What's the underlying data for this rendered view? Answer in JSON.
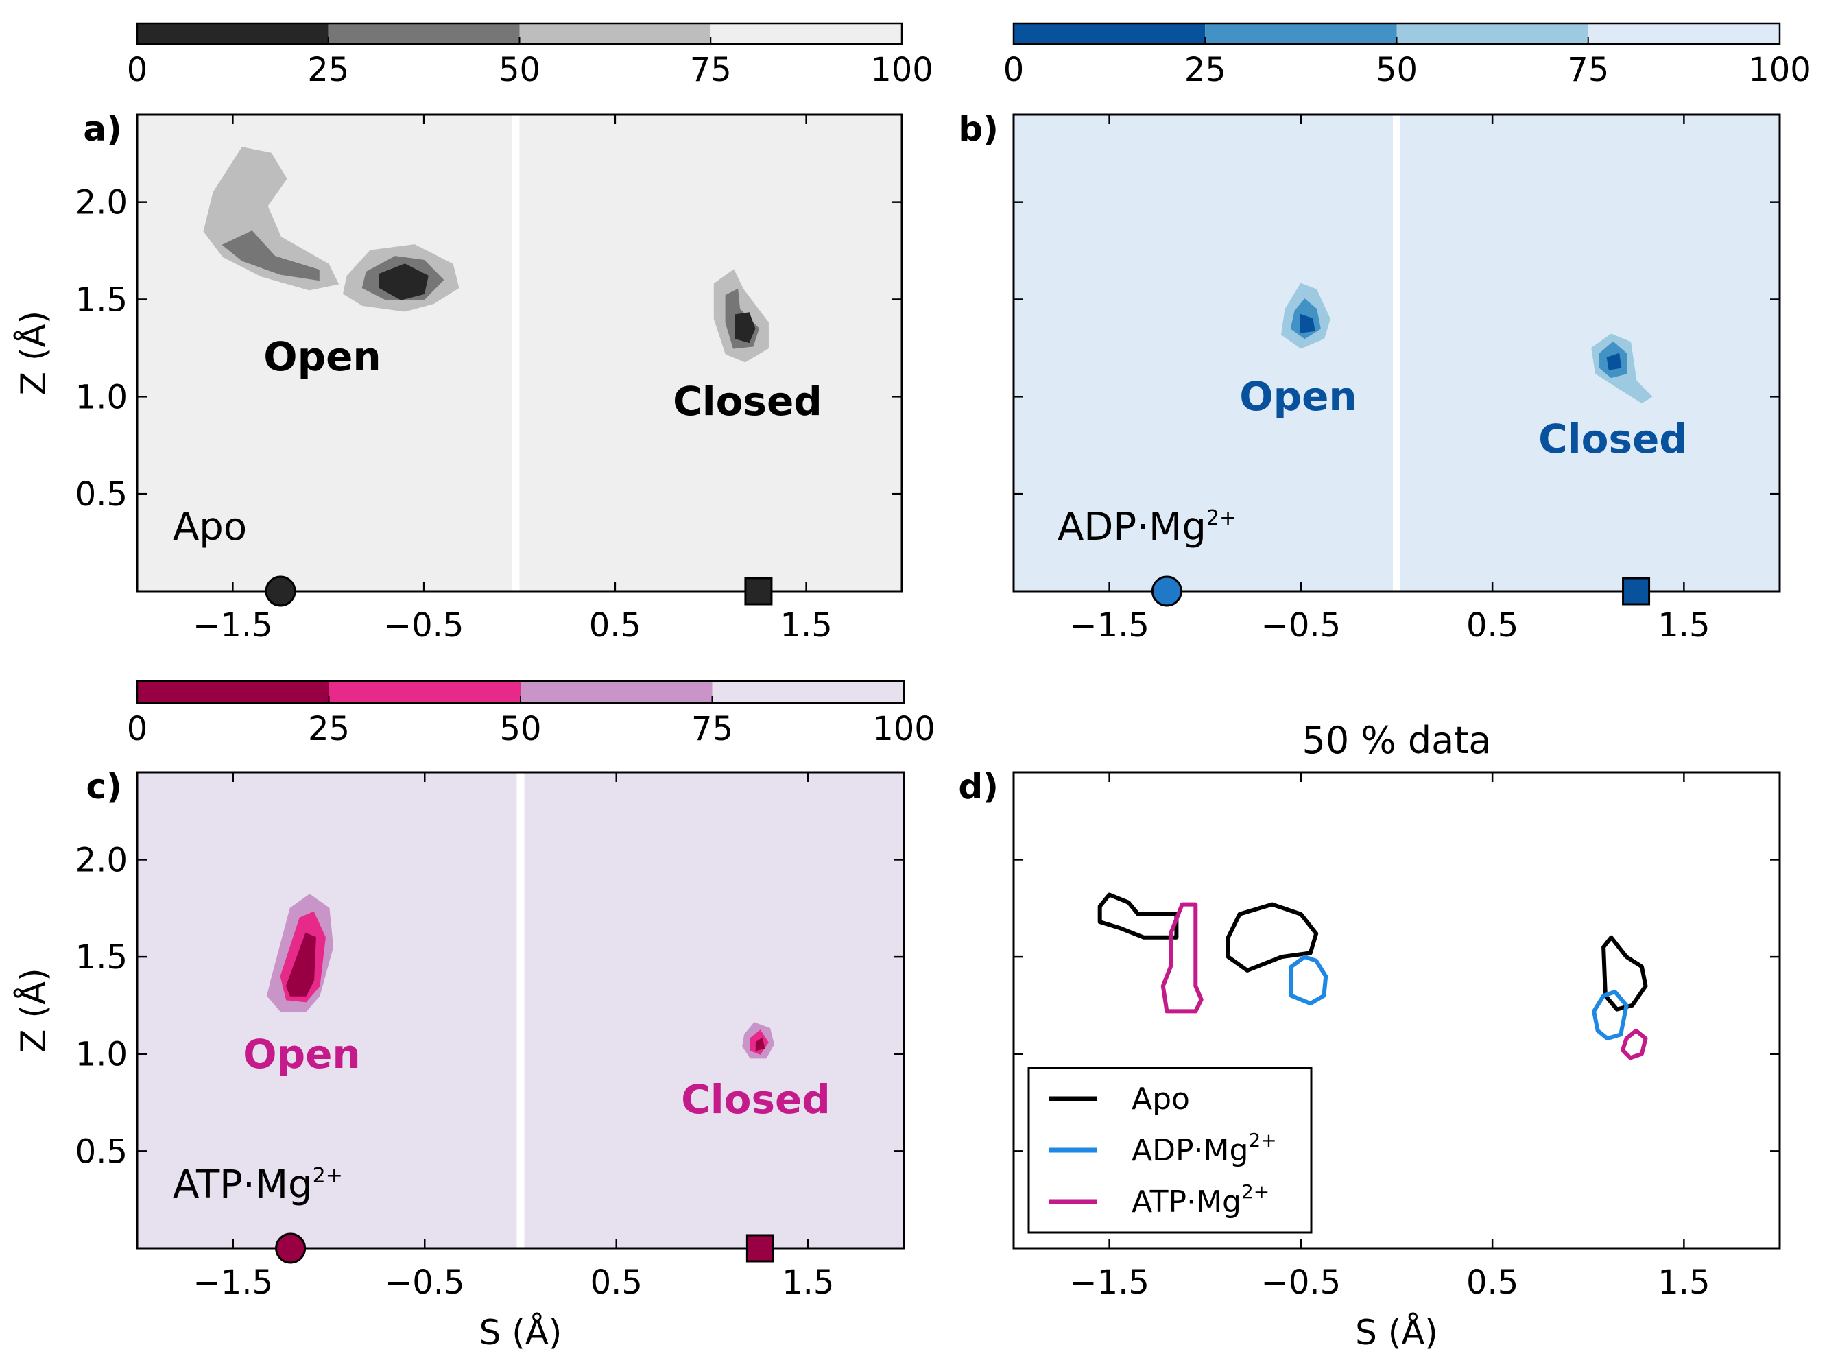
{
  "chart_data": [
    {
      "panel": "a)",
      "type": "contour",
      "condition": {
        "base": "Apo",
        "sup": ""
      },
      "background_color": "#efefef",
      "colorbar": {
        "ticks": [
          "0",
          "25",
          "50",
          "75",
          "100"
        ],
        "colors": [
          "#262626",
          "#767676",
          "#bdbdbd",
          "#efefef"
        ]
      },
      "xticks": [
        "−1.5",
        "−0.5",
        "0.5",
        "1.5"
      ],
      "yticks": [
        "0.5",
        "1.0",
        "1.5",
        "2.0"
      ],
      "xlim": [
        -2.0,
        2.0
      ],
      "ylim": [
        0.0,
        2.45
      ],
      "ylabel": "Z (Å)",
      "xlabel": "",
      "divider_x": -0.02,
      "labels": {
        "open": "Open",
        "closed": "Closed"
      },
      "label_color": "#000000",
      "marker_color": "#262626",
      "open_marker": [
        -1.25,
        0.0
      ],
      "closed_marker": [
        1.25,
        0.0
      ],
      "clusters": [
        {
          "levels": [
            [
              [
                -1.6,
                2.05
              ],
              [
                -1.45,
                2.28
              ],
              [
                -1.3,
                2.25
              ],
              [
                -1.22,
                2.12
              ],
              [
                -1.32,
                1.98
              ],
              [
                -1.25,
                1.82
              ],
              [
                -1.0,
                1.68
              ],
              [
                -0.95,
                1.58
              ],
              [
                -1.1,
                1.55
              ],
              [
                -1.35,
                1.62
              ],
              [
                -1.55,
                1.72
              ],
              [
                -1.65,
                1.85
              ]
            ],
            [
              [
                -1.55,
                1.78
              ],
              [
                -1.4,
                1.85
              ],
              [
                -1.28,
                1.72
              ],
              [
                -1.05,
                1.65
              ],
              [
                -1.05,
                1.6
              ],
              [
                -1.25,
                1.63
              ],
              [
                -1.45,
                1.7
              ]
            ]
          ]
        },
        {
          "levels": [
            [
              [
                -0.9,
                1.62
              ],
              [
                -0.78,
                1.75
              ],
              [
                -0.55,
                1.78
              ],
              [
                -0.35,
                1.68
              ],
              [
                -0.32,
                1.56
              ],
              [
                -0.45,
                1.48
              ],
              [
                -0.6,
                1.44
              ],
              [
                -0.82,
                1.47
              ],
              [
                -0.92,
                1.53
              ]
            ],
            [
              [
                -0.8,
                1.64
              ],
              [
                -0.65,
                1.72
              ],
              [
                -0.5,
                1.7
              ],
              [
                -0.4,
                1.6
              ],
              [
                -0.5,
                1.5
              ],
              [
                -0.7,
                1.5
              ],
              [
                -0.82,
                1.56
              ]
            ],
            [
              [
                -0.73,
                1.63
              ],
              [
                -0.6,
                1.68
              ],
              [
                -0.48,
                1.62
              ],
              [
                -0.5,
                1.53
              ],
              [
                -0.62,
                1.5
              ],
              [
                -0.73,
                1.56
              ]
            ]
          ]
        },
        {
          "levels": [
            [
              [
                1.02,
                1.58
              ],
              [
                1.12,
                1.65
              ],
              [
                1.17,
                1.55
              ],
              [
                1.3,
                1.38
              ],
              [
                1.3,
                1.25
              ],
              [
                1.18,
                1.18
              ],
              [
                1.08,
                1.22
              ],
              [
                1.02,
                1.4
              ]
            ],
            [
              [
                1.08,
                1.52
              ],
              [
                1.14,
                1.55
              ],
              [
                1.15,
                1.45
              ],
              [
                1.25,
                1.35
              ],
              [
                1.22,
                1.26
              ],
              [
                1.12,
                1.25
              ],
              [
                1.08,
                1.38
              ]
            ],
            [
              [
                1.13,
                1.42
              ],
              [
                1.2,
                1.43
              ],
              [
                1.23,
                1.35
              ],
              [
                1.2,
                1.28
              ],
              [
                1.13,
                1.3
              ]
            ]
          ]
        }
      ]
    },
    {
      "panel": "b)",
      "type": "contour",
      "condition": {
        "base": "ADP·Mg",
        "sup": "2+"
      },
      "background_color": "#deebf7",
      "colorbar": {
        "ticks": [
          "0",
          "25",
          "50",
          "75",
          "100"
        ],
        "colors": [
          "#08519c",
          "#4292c6",
          "#9ecae1",
          "#deebf7"
        ]
      },
      "xticks": [
        "−1.5",
        "−0.5",
        "0.5",
        "1.5"
      ],
      "yticks": [],
      "xlim": [
        -2.0,
        2.0
      ],
      "ylim": [
        0.0,
        2.45
      ],
      "ylabel": "",
      "xlabel": "",
      "divider_x": 0.0,
      "labels": {
        "open": "Open",
        "closed": "Closed"
      },
      "label_color": "#08519c",
      "marker_color": "#1f78c8",
      "closed_marker_color": "#08519c",
      "open_marker": [
        -1.2,
        0.0
      ],
      "closed_marker": [
        1.25,
        0.0
      ],
      "clusters": [
        {
          "levels": [
            [
              [
                -0.58,
                1.45
              ],
              [
                -0.5,
                1.58
              ],
              [
                -0.42,
                1.55
              ],
              [
                -0.35,
                1.4
              ],
              [
                -0.38,
                1.3
              ],
              [
                -0.5,
                1.25
              ],
              [
                -0.6,
                1.32
              ]
            ],
            [
              [
                -0.53,
                1.44
              ],
              [
                -0.48,
                1.5
              ],
              [
                -0.42,
                1.45
              ],
              [
                -0.4,
                1.35
              ],
              [
                -0.48,
                1.3
              ],
              [
                -0.55,
                1.35
              ]
            ],
            [
              [
                -0.5,
                1.42
              ],
              [
                -0.44,
                1.4
              ],
              [
                -0.43,
                1.34
              ],
              [
                -0.5,
                1.33
              ]
            ]
          ]
        },
        {
          "levels": [
            [
              [
                1.02,
                1.25
              ],
              [
                1.12,
                1.32
              ],
              [
                1.22,
                1.28
              ],
              [
                1.25,
                1.08
              ],
              [
                1.33,
                1.0
              ],
              [
                1.28,
                0.97
              ],
              [
                1.15,
                1.05
              ],
              [
                1.04,
                1.12
              ]
            ],
            [
              [
                1.06,
                1.22
              ],
              [
                1.13,
                1.28
              ],
              [
                1.2,
                1.22
              ],
              [
                1.2,
                1.12
              ],
              [
                1.12,
                1.1
              ],
              [
                1.06,
                1.15
              ]
            ],
            [
              [
                1.1,
                1.2
              ],
              [
                1.16,
                1.22
              ],
              [
                1.17,
                1.15
              ],
              [
                1.11,
                1.14
              ]
            ]
          ]
        }
      ]
    },
    {
      "panel": "c)",
      "type": "contour",
      "condition": {
        "base": "ATP·Mg",
        "sup": "2+"
      },
      "background_color": "#e7e1ef",
      "colorbar": {
        "ticks": [
          "0",
          "25",
          "50",
          "75",
          "100"
        ],
        "colors": [
          "#980043",
          "#e7298a",
          "#c994c7",
          "#e7e1ef"
        ]
      },
      "xticks": [
        "−1.5",
        "−0.5",
        "0.5",
        "1.5"
      ],
      "yticks": [
        "0.5",
        "1.0",
        "1.5",
        "2.0"
      ],
      "xlim": [
        -2.0,
        2.0
      ],
      "ylim": [
        0.0,
        2.45
      ],
      "ylabel": "Z (Å)",
      "xlabel": "S (Å)",
      "divider_x": 0.0,
      "labels": {
        "open": "Open",
        "closed": "Closed"
      },
      "label_color": "#c51b8a",
      "marker_color": "#980043",
      "open_marker": [
        -1.2,
        0.0
      ],
      "closed_marker": [
        1.25,
        0.0
      ],
      "clusters": [
        {
          "levels": [
            [
              [
                -1.3,
                1.38
              ],
              [
                -1.2,
                1.75
              ],
              [
                -1.1,
                1.82
              ],
              [
                -1.0,
                1.75
              ],
              [
                -0.98,
                1.55
              ],
              [
                -1.05,
                1.3
              ],
              [
                -1.12,
                1.22
              ],
              [
                -1.25,
                1.22
              ],
              [
                -1.32,
                1.3
              ]
            ],
            [
              [
                -1.25,
                1.4
              ],
              [
                -1.15,
                1.7
              ],
              [
                -1.08,
                1.73
              ],
              [
                -1.02,
                1.6
              ],
              [
                -1.05,
                1.35
              ],
              [
                -1.12,
                1.27
              ],
              [
                -1.22,
                1.28
              ]
            ],
            [
              [
                -1.22,
                1.35
              ],
              [
                -1.12,
                1.62
              ],
              [
                -1.07,
                1.6
              ],
              [
                -1.08,
                1.38
              ],
              [
                -1.12,
                1.3
              ],
              [
                -1.2,
                1.3
              ]
            ]
          ]
        },
        {
          "levels": [
            [
              [
                1.17,
                1.1
              ],
              [
                1.22,
                1.16
              ],
              [
                1.3,
                1.13
              ],
              [
                1.32,
                1.05
              ],
              [
                1.28,
                0.98
              ],
              [
                1.2,
                0.98
              ],
              [
                1.16,
                1.04
              ]
            ],
            [
              [
                1.2,
                1.08
              ],
              [
                1.25,
                1.12
              ],
              [
                1.29,
                1.06
              ],
              [
                1.25,
                1.0
              ],
              [
                1.2,
                1.02
              ]
            ],
            [
              [
                1.23,
                1.06
              ],
              [
                1.26,
                1.08
              ],
              [
                1.27,
                1.03
              ],
              [
                1.23,
                1.02
              ]
            ]
          ]
        }
      ]
    },
    {
      "panel": "d)",
      "type": "line",
      "title": "50 % data",
      "xticks": [
        "−1.5",
        "−0.5",
        "0.5",
        "1.5"
      ],
      "yticks": [],
      "xlim": [
        -2.0,
        2.0
      ],
      "ylim": [
        0.0,
        2.45
      ],
      "xlabel": "S (Å)",
      "ylabel": "",
      "series": [
        {
          "name": "Apo",
          "color": "#000000",
          "outlines": [
            [
              [
                -1.55,
                1.76
              ],
              [
                -1.5,
                1.82
              ],
              [
                -1.4,
                1.78
              ],
              [
                -1.35,
                1.72
              ],
              [
                -1.15,
                1.72
              ],
              [
                -1.15,
                1.6
              ],
              [
                -1.32,
                1.6
              ],
              [
                -1.45,
                1.65
              ],
              [
                -1.55,
                1.68
              ]
            ],
            [
              [
                -0.88,
                1.6
              ],
              [
                -0.82,
                1.72
              ],
              [
                -0.65,
                1.77
              ],
              [
                -0.5,
                1.72
              ],
              [
                -0.42,
                1.62
              ],
              [
                -0.45,
                1.52
              ],
              [
                -0.6,
                1.5
              ],
              [
                -0.78,
                1.43
              ],
              [
                -0.88,
                1.5
              ]
            ],
            [
              [
                1.08,
                1.55
              ],
              [
                1.12,
                1.6
              ],
              [
                1.2,
                1.5
              ],
              [
                1.28,
                1.45
              ],
              [
                1.3,
                1.35
              ],
              [
                1.23,
                1.25
              ],
              [
                1.15,
                1.23
              ],
              [
                1.09,
                1.3
              ]
            ]
          ]
        },
        {
          "name": "ADP·Mg",
          "sup": "2+",
          "color": "#1e88e5",
          "outlines": [
            [
              [
                -0.55,
                1.45
              ],
              [
                -0.48,
                1.5
              ],
              [
                -0.42,
                1.48
              ],
              [
                -0.37,
                1.4
              ],
              [
                -0.38,
                1.3
              ],
              [
                -0.45,
                1.26
              ],
              [
                -0.55,
                1.3
              ]
            ],
            [
              [
                1.03,
                1.22
              ],
              [
                1.08,
                1.3
              ],
              [
                1.14,
                1.32
              ],
              [
                1.2,
                1.25
              ],
              [
                1.17,
                1.1
              ],
              [
                1.1,
                1.08
              ],
              [
                1.05,
                1.12
              ]
            ]
          ]
        },
        {
          "name": "ATP·Mg",
          "sup": "2+",
          "color": "#c51b8a",
          "outlines": [
            [
              [
                -1.18,
                1.62
              ],
              [
                -1.12,
                1.77
              ],
              [
                -1.05,
                1.77
              ],
              [
                -1.05,
                1.35
              ],
              [
                -1.02,
                1.28
              ],
              [
                -1.05,
                1.22
              ],
              [
                -1.2,
                1.22
              ],
              [
                -1.22,
                1.35
              ],
              [
                -1.18,
                1.45
              ]
            ],
            [
              [
                1.2,
                1.08
              ],
              [
                1.25,
                1.12
              ],
              [
                1.3,
                1.08
              ],
              [
                1.28,
                1.0
              ],
              [
                1.22,
                0.98
              ],
              [
                1.18,
                1.02
              ]
            ]
          ]
        }
      ]
    }
  ]
}
